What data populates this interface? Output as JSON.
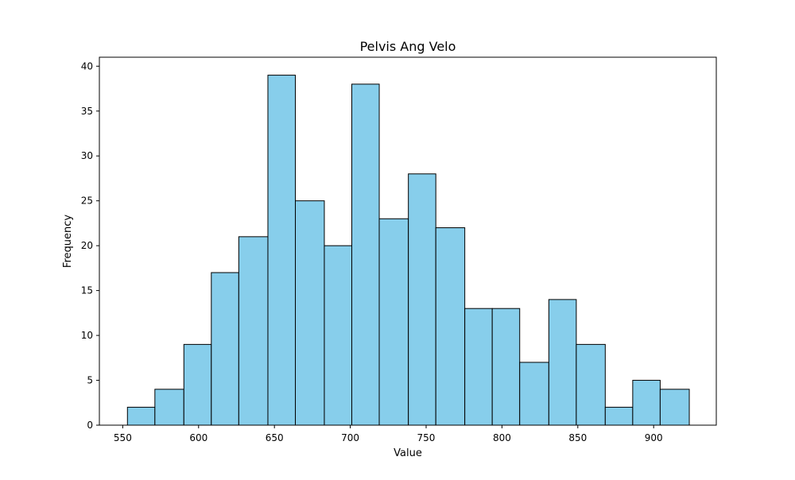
{
  "chart_data": {
    "type": "bar",
    "title": "Pelvis Ang Velo",
    "xlabel": "Value",
    "ylabel": "Frequency",
    "bin_edges": [
      553.1,
      571.2,
      590.3,
      608.4,
      626.5,
      645.7,
      663.8,
      682.9,
      701.0,
      719.1,
      738.3,
      756.4,
      775.5,
      793.6,
      811.7,
      830.9,
      849.0,
      868.1,
      886.2,
      904.3,
      923.5
    ],
    "values": [
      2,
      4,
      9,
      17,
      21,
      39,
      25,
      20,
      38,
      23,
      28,
      22,
      13,
      13,
      7,
      14,
      9,
      2,
      5,
      4
    ],
    "xlim": [
      534.6,
      941.3
    ],
    "ylim": [
      0,
      41
    ],
    "xticks": [
      550,
      600,
      650,
      700,
      750,
      800,
      850,
      900
    ],
    "yticks": [
      0,
      5,
      10,
      15,
      20,
      25,
      30,
      35,
      40
    ],
    "bar_color": "#87ceeb",
    "edge_color": "#000000",
    "grid": false,
    "legend": "none"
  }
}
